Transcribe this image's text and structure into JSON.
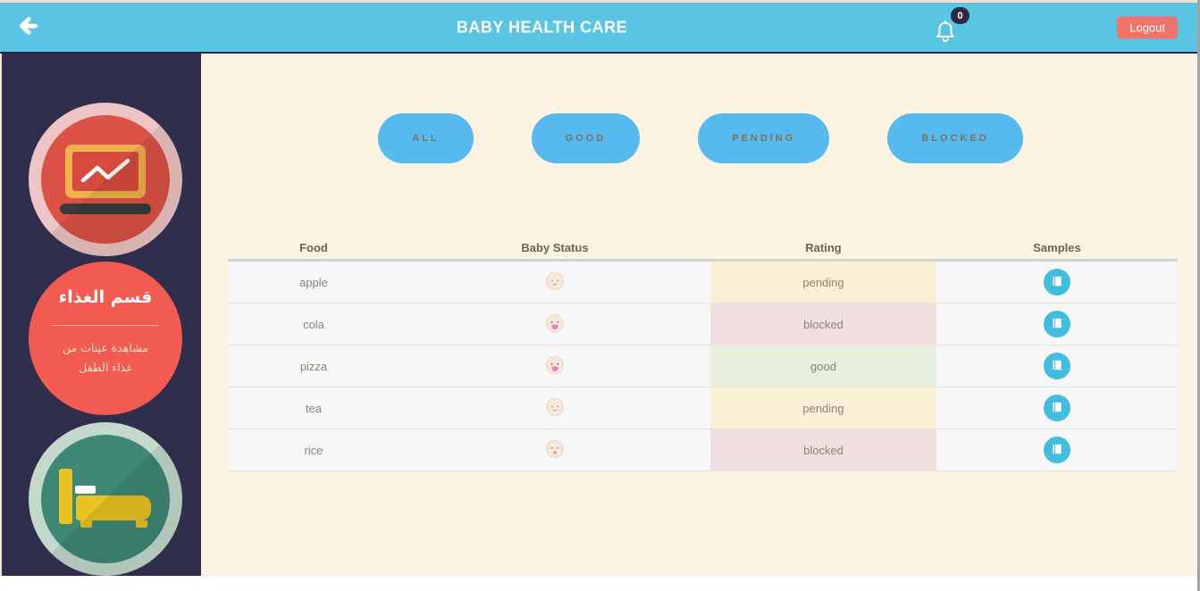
{
  "header": {
    "title": "BABY HEALTH CARE",
    "back_icon": "arrow-left-icon",
    "notifications": {
      "icon": "bell-icon",
      "count": "0"
    },
    "logout_label": "Logout"
  },
  "sidebar": {
    "cards": [
      {
        "icon": "monitor-chart-icon"
      },
      {
        "title_ar": "قسم الغذاء",
        "subtitle_ar_line1": "مشاهدة عينات من",
        "subtitle_ar_line2": "غذاء الطفل"
      },
      {
        "icon": "bed-icon"
      }
    ]
  },
  "filters": [
    {
      "label": "ALL"
    },
    {
      "label": "GOOD"
    },
    {
      "label": "PENDING"
    },
    {
      "label": "BLOCKED"
    }
  ],
  "table": {
    "columns": [
      "Food",
      "Baby Status",
      "Rating",
      "Samples"
    ],
    "rows": [
      {
        "food": "apple",
        "baby_status": "neutral",
        "rating": "pending"
      },
      {
        "food": "cola",
        "baby_status": "happy",
        "rating": "blocked"
      },
      {
        "food": "pizza",
        "baby_status": "happy",
        "rating": "good"
      },
      {
        "food": "tea",
        "baby_status": "neutral",
        "rating": "pending"
      },
      {
        "food": "rice",
        "baby_status": "sad",
        "rating": "blocked"
      }
    ],
    "samples_icon": "book-icon",
    "baby_icon": "baby-face-icon"
  },
  "colors": {
    "header_blue": "#5ac4e3",
    "sidebar_navy": "#2f2e4c",
    "content_cream": "#fdf3e2",
    "filter_blue": "#57baee",
    "logout_coral": "#f1746c",
    "samples_blue": "#41bdde",
    "rating_pending_bg": "#faf0d6",
    "rating_blocked_bg": "#f1dede",
    "rating_good_bg": "#e5efdb",
    "card1_red": "#dd5246",
    "card2_red": "#f15b52",
    "card3_teal": "#3f8875",
    "bed_yellow": "#e9c321"
  }
}
